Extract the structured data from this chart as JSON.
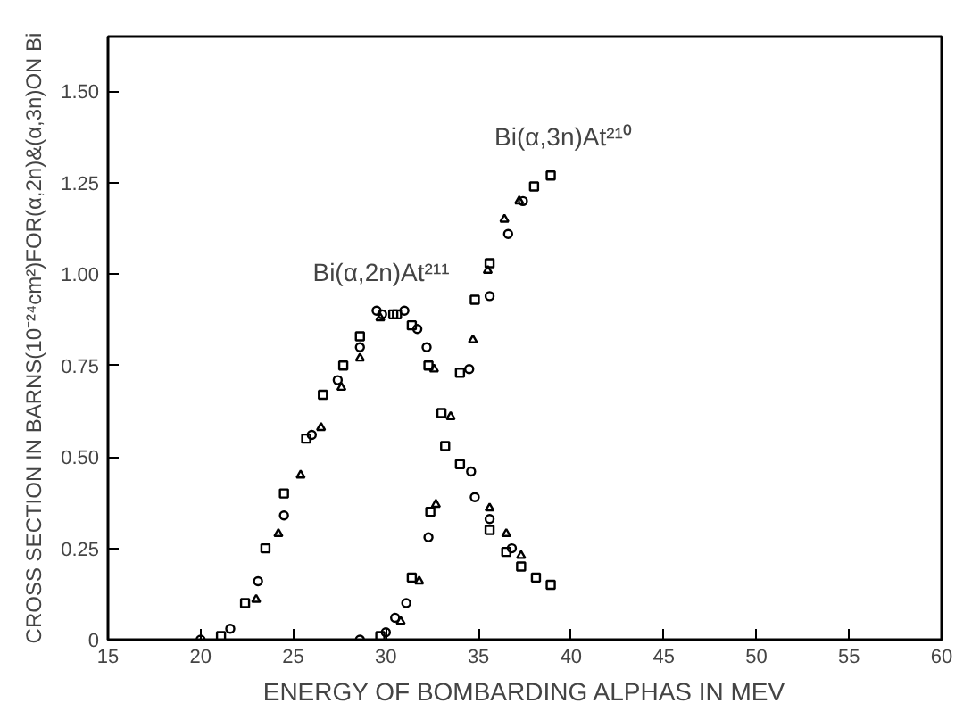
{
  "chart_data": {
    "type": "scatter",
    "xlabel": "ENERGY OF BOMBARDING ALPHAS IN MEV",
    "ylabel": "CROSS SECTION IN BARNS(10⁻²⁴cm²)FOR(α,2n)&(α,3n)ON Bi",
    "xlim": [
      15,
      60
    ],
    "ylim": [
      0,
      1.65
    ],
    "xticks": [
      15,
      20,
      25,
      30,
      35,
      40,
      45,
      50,
      55,
      60
    ],
    "yticks": [
      0,
      {
        "value": 0.25,
        "label": "0.25"
      },
      {
        "value": 0.5,
        "label": "0.50"
      },
      {
        "value": 0.75,
        "label": "0.75"
      },
      {
        "value": 1.0,
        "label": "1.00"
      },
      {
        "value": 1.25,
        "label": "1.25"
      },
      {
        "value": 1.5,
        "label": "1.50"
      }
    ],
    "grid": false,
    "annotations": [
      "Bi(α,2n)At²¹¹",
      "Bi(α,3n)At²¹⁰"
    ],
    "series": [
      {
        "marker": "circle",
        "color": "#000000",
        "x": [
          20.0,
          21.6,
          23.1,
          24.5,
          26.0,
          27.4,
          28.6,
          29.5,
          29.8,
          31.0,
          31.7,
          32.2,
          34.6,
          34.8,
          35.6,
          36.8,
          28.6,
          30.0,
          30.5,
          31.1,
          32.3,
          34.5,
          35.6,
          36.6,
          37.4
        ],
        "values": [
          0.0,
          0.03,
          0.16,
          0.34,
          0.56,
          0.71,
          0.8,
          0.9,
          0.89,
          0.9,
          0.85,
          0.8,
          0.46,
          0.39,
          0.33,
          0.25,
          0.0,
          0.02,
          0.06,
          0.1,
          0.28,
          0.74,
          0.94,
          1.11,
          1.2
        ]
      },
      {
        "marker": "square",
        "color": "#000000",
        "x": [
          21.1,
          22.4,
          23.5,
          24.5,
          25.7,
          26.6,
          27.7,
          28.6,
          30.4,
          30.6,
          31.4,
          32.3,
          33.0,
          33.2,
          34.0,
          35.6,
          36.5,
          37.3,
          38.1,
          38.9,
          29.7,
          31.4,
          32.4,
          34.0,
          34.8,
          35.6,
          38.0,
          38.9
        ],
        "values": [
          0.01,
          0.1,
          0.25,
          0.4,
          0.55,
          0.67,
          0.75,
          0.83,
          0.89,
          0.89,
          0.86,
          0.75,
          0.62,
          0.53,
          0.48,
          0.3,
          0.24,
          0.2,
          0.17,
          0.15,
          0.01,
          0.17,
          0.35,
          0.73,
          0.93,
          1.03,
          1.24,
          1.27
        ]
      },
      {
        "marker": "triangle",
        "color": "#000000",
        "x": [
          23.0,
          24.2,
          25.4,
          26.5,
          27.6,
          28.6,
          29.7,
          32.6,
          33.5,
          35.6,
          36.5,
          37.3,
          30.8,
          31.8,
          32.7,
          34.7,
          35.5,
          36.4,
          37.2
        ],
        "values": [
          0.11,
          0.29,
          0.45,
          0.58,
          0.69,
          0.77,
          0.88,
          0.74,
          0.61,
          0.36,
          0.29,
          0.23,
          0.05,
          0.16,
          0.37,
          0.82,
          1.01,
          1.15,
          1.2
        ]
      }
    ]
  }
}
